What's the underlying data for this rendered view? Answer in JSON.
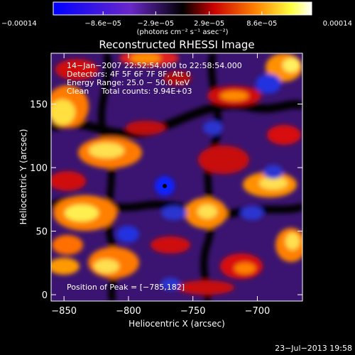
{
  "chart_data": {
    "type": "heatmap",
    "title": "Reconstructed RHESSI Image",
    "xlabel": "Heliocentric X (arcsec)",
    "ylabel": "Heliocentric Y (arcsec)",
    "xlim": [
      -860,
      -665
    ],
    "ylim": [
      -5,
      190
    ],
    "x_ticks": [
      -850,
      -800,
      -750,
      -700
    ],
    "y_ticks": [
      0,
      50,
      100,
      150
    ],
    "x_tick_labels": [
      "−850",
      "−800",
      "−750",
      "−700"
    ],
    "y_tick_labels": [
      "0",
      "50",
      "100",
      "150"
    ],
    "colorbar": {
      "units": "(photons cm⁻² s⁻¹ asec⁻²)",
      "min": -0.00014,
      "max": 0.00014,
      "tick_values": [
        -0.00014,
        -8.6e-05,
        -2.9e-05,
        2.9e-05,
        8.6e-05,
        0.00014
      ],
      "tick_labels": [
        "−0.00014",
        "−8.6e−05",
        "−2.9e−05",
        "2.9e−05",
        "8.6e−05",
        "0.00014"
      ],
      "colors": [
        "#0000ff",
        "#6a28c8",
        "#000000",
        "#c80000",
        "#ff8000",
        "#ffff40",
        "#ffffff"
      ]
    },
    "info_lines": [
      "14−Jan−2007 22:52:54.000 to 22:58:54.000",
      "Detectors: 4F 5F 6F 7F 8F, Att 0",
      "Energy Range: 25.0 − 50.0 keV",
      "Clean     Total counts: 9.94E+03"
    ],
    "peak_text": "Position of Peak = [−785,182]",
    "peak_position": [
      -785,
      182
    ],
    "grid": false
  },
  "footer": {
    "date": "23−Jul−2013 19:58"
  }
}
